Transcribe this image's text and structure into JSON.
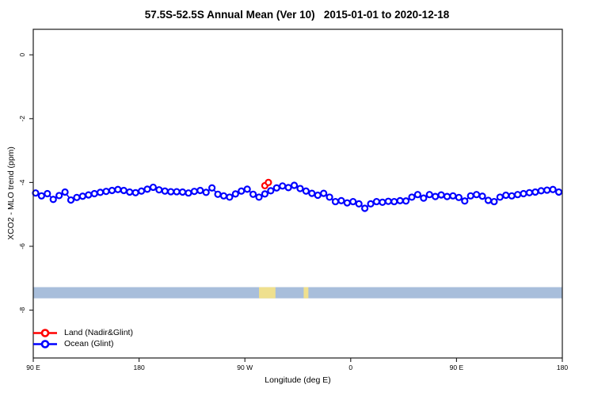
{
  "chart_data": {
    "type": "line",
    "title": "57.5S-52.5S Annual Mean (Ver 10)   2015-01-01 to 2020-12-18",
    "xlabel": "Longitude (deg E)",
    "ylabel": "XCO2 - MLO trend (ppm)",
    "xlim": [
      90,
      540
    ],
    "ylim": [
      -9.5,
      0.8
    ],
    "grid": false,
    "x_axis_ticks": [
      {
        "value": 90,
        "label": "90 E"
      },
      {
        "value": 180,
        "label": "180"
      },
      {
        "value": 270,
        "label": "90 W"
      },
      {
        "value": 360,
        "label": "0"
      },
      {
        "value": 450,
        "label": "90 E"
      },
      {
        "value": 540,
        "label": "180"
      }
    ],
    "y_axis_ticks": [
      {
        "value": 0,
        "label": "0"
      },
      {
        "value": -2,
        "label": "-2"
      },
      {
        "value": -4,
        "label": "-4"
      },
      {
        "value": -6,
        "label": "-6"
      },
      {
        "value": -8,
        "label": "-8"
      }
    ],
    "legend": {
      "position": "bottom-left",
      "items": [
        {
          "label": "Land (Nadir&Glint)",
          "color": "#ff0000"
        },
        {
          "label": "Ocean (Glint)",
          "color": "#0000ff"
        }
      ]
    },
    "map_strip": {
      "description": "land/ocean map band",
      "ocean_color": "#a8bedb",
      "land_color": "#efe08e",
      "value_top": -7.28,
      "value_bottom": -7.63,
      "land_segments_deg": [
        [
          282,
          296
        ],
        [
          320,
          324
        ]
      ]
    },
    "series": [
      {
        "name": "Ocean (Glint)",
        "color": "#0000ff",
        "marker": "open-circle",
        "x": [
          92,
          97,
          102,
          107,
          112,
          117,
          122,
          127,
          132,
          137,
          142,
          147,
          152,
          157,
          162,
          167,
          172,
          177,
          182,
          187,
          192,
          197,
          202,
          207,
          212,
          217,
          222,
          227,
          232,
          237,
          242,
          247,
          252,
          257,
          262,
          267,
          272,
          277,
          282,
          287,
          292,
          297,
          302,
          307,
          312,
          317,
          322,
          327,
          332,
          337,
          342,
          347,
          352,
          357,
          362,
          367,
          372,
          377,
          382,
          387,
          392,
          397,
          402,
          407,
          412,
          417,
          422,
          427,
          432,
          437,
          442,
          447,
          452,
          457,
          462,
          467,
          472,
          477,
          482,
          487,
          492,
          497,
          502,
          507,
          512,
          517,
          522,
          527,
          532,
          537
        ],
        "values": [
          -4.33,
          -4.42,
          -4.35,
          -4.53,
          -4.41,
          -4.3,
          -4.55,
          -4.47,
          -4.43,
          -4.39,
          -4.35,
          -4.31,
          -4.28,
          -4.25,
          -4.22,
          -4.25,
          -4.3,
          -4.32,
          -4.27,
          -4.21,
          -4.15,
          -4.23,
          -4.27,
          -4.29,
          -4.29,
          -4.3,
          -4.33,
          -4.28,
          -4.25,
          -4.31,
          -4.17,
          -4.37,
          -4.42,
          -4.46,
          -4.36,
          -4.27,
          -4.21,
          -4.37,
          -4.46,
          -4.36,
          -4.26,
          -4.17,
          -4.11,
          -4.16,
          -4.09,
          -4.19,
          -4.27,
          -4.34,
          -4.4,
          -4.34,
          -4.46,
          -4.6,
          -4.57,
          -4.64,
          -4.6,
          -4.67,
          -4.81,
          -4.67,
          -4.6,
          -4.62,
          -4.59,
          -4.6,
          -4.57,
          -4.58,
          -4.46,
          -4.38,
          -4.49,
          -4.38,
          -4.44,
          -4.39,
          -4.44,
          -4.42,
          -4.47,
          -4.58,
          -4.42,
          -4.38,
          -4.43,
          -4.56,
          -4.6,
          -4.46,
          -4.4,
          -4.42,
          -4.38,
          -4.35,
          -4.32,
          -4.3,
          -4.26,
          -4.24,
          -4.22,
          -4.3
        ]
      },
      {
        "name": "Land (Nadir&Glint)",
        "color": "#ff0000",
        "marker": "open-circle",
        "x": [
          287,
          290
        ],
        "values": [
          -4.1,
          -4.0
        ]
      }
    ]
  }
}
